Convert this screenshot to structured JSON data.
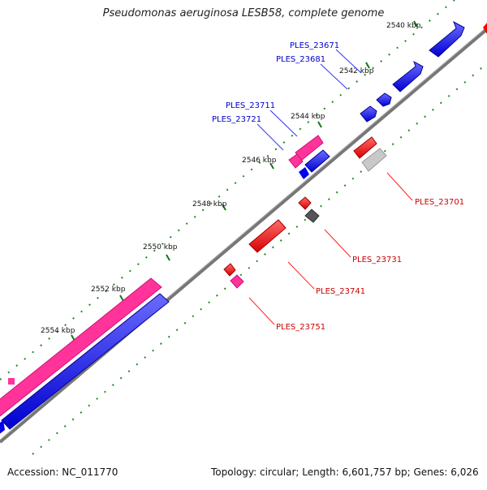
{
  "title": "Pseudomonas aeruginosa LESB58, complete genome",
  "accession": "Accession: NC_011770",
  "summary": "Topology: circular; Length: 6,601,757 bp; Genes: 6,026",
  "ticks": [
    "2540 kbp",
    "2542 kbp",
    "2544 kbp",
    "2546 kbp",
    "2548 kbp",
    "2550 kbp",
    "2552 kbp",
    "2554 kbp"
  ],
  "genes_forward": [
    "PLES_23671",
    "PLES_23681",
    "PLES_23711",
    "PLES_23721"
  ],
  "genes_reverse": [
    "PLES_23701",
    "PLES_23731",
    "PLES_23741",
    "PLES_23751"
  ],
  "colors": {
    "forward_cds": "#0000ff",
    "reverse_cds": "#ff0000",
    "pink_feature": "#ff3399",
    "gray_feature": "#c0c0c0",
    "dark_feature": "#555555",
    "backbone": "#777777",
    "tick_green": "#228822",
    "forward_label": "#0000cc",
    "reverse_label": "#cc0000"
  }
}
